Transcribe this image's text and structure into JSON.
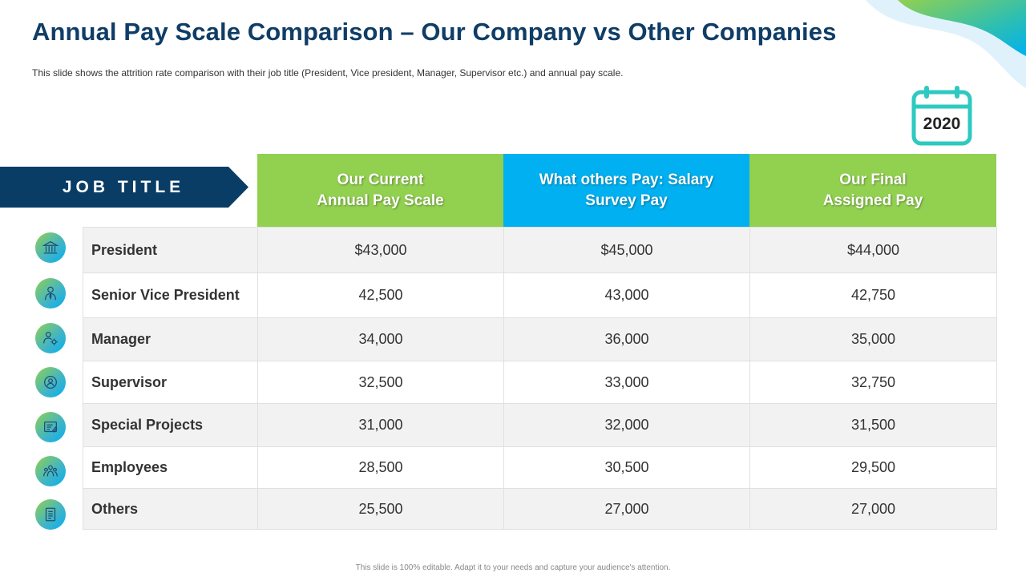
{
  "title": "Annual Pay Scale Comparison – Our Company vs Other Companies",
  "subtitle": "This slide shows the attrition rate comparison with their job title (President, Vice president, Manager, Supervisor  etc.) and annual pay scale.",
  "calendar_year": "2020",
  "job_title_label": "JOB TITLE",
  "columns": [
    "Our Current\nAnnual Pay Scale",
    "What others Pay: Salary\nSurvey Pay",
    "Our Final\nAssigned Pay"
  ],
  "rows": [
    {
      "title": "President",
      "icon": "government-building-icon",
      "values": [
        "$43,000",
        "$45,000",
        "$44,000"
      ]
    },
    {
      "title": "Senior Vice President",
      "icon": "businessman-icon",
      "values": [
        "42,500",
        "43,000",
        "42,750"
      ]
    },
    {
      "title": "Manager",
      "icon": "manager-gear-icon",
      "values": [
        "34,000",
        "36,000",
        "35,000"
      ]
    },
    {
      "title": "Supervisor",
      "icon": "supervisor-badge-icon",
      "values": [
        "32,500",
        "33,000",
        "32,750"
      ]
    },
    {
      "title": "Special Projects",
      "icon": "project-board-icon",
      "values": [
        "31,000",
        "32,000",
        "31,500"
      ]
    },
    {
      "title": "Employees",
      "icon": "team-group-icon",
      "values": [
        "28,500",
        "30,500",
        "29,500"
      ]
    },
    {
      "title": "Others",
      "icon": "document-list-icon",
      "values": [
        "25,500",
        "27,000",
        "27,000"
      ]
    }
  ],
  "footer": "This slide is 100% editable. Adapt it to your needs and capture your audience's attention.",
  "colors": {
    "title": "#0f3d66",
    "banner": "#0a3d66",
    "green_header": "#92d050",
    "blue_header": "#00b0f0",
    "calendar": "#2ec9c0"
  }
}
